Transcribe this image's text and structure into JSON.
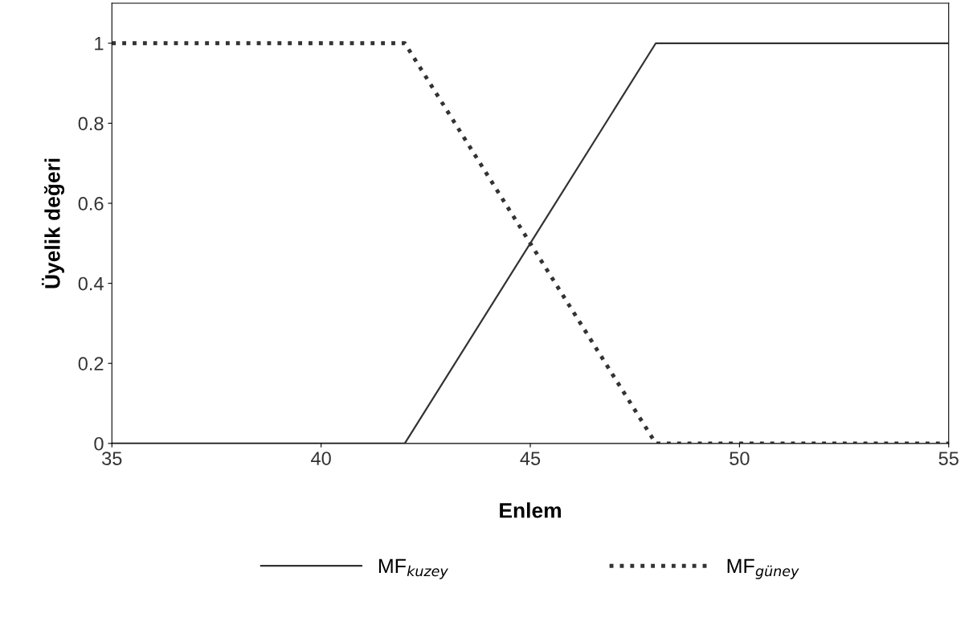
{
  "chart_data": {
    "type": "line",
    "xlabel": "Enlem",
    "ylabel": "Üyelik değeri",
    "xlim": [
      35,
      55
    ],
    "xticks": [
      35,
      40,
      45,
      50,
      55
    ],
    "ylim": [
      0,
      1.1
    ],
    "yticks": [
      0,
      0.2,
      0.4,
      0.6,
      0.8,
      1
    ],
    "grid": false,
    "legend": "bottom",
    "marker": "none",
    "series": [
      {
        "name": "MF$_{kuzey}$",
        "color": "#333333",
        "line_style": "solid",
        "x": [
          35,
          42,
          48,
          55
        ],
        "values": [
          0,
          0,
          1,
          1
        ]
      },
      {
        "name": "MF$_{güney}$",
        "color": "#333333",
        "line_style": "dotted",
        "x": [
          35,
          42,
          48,
          55
        ],
        "values": [
          1,
          1,
          0,
          0
        ]
      }
    ]
  }
}
